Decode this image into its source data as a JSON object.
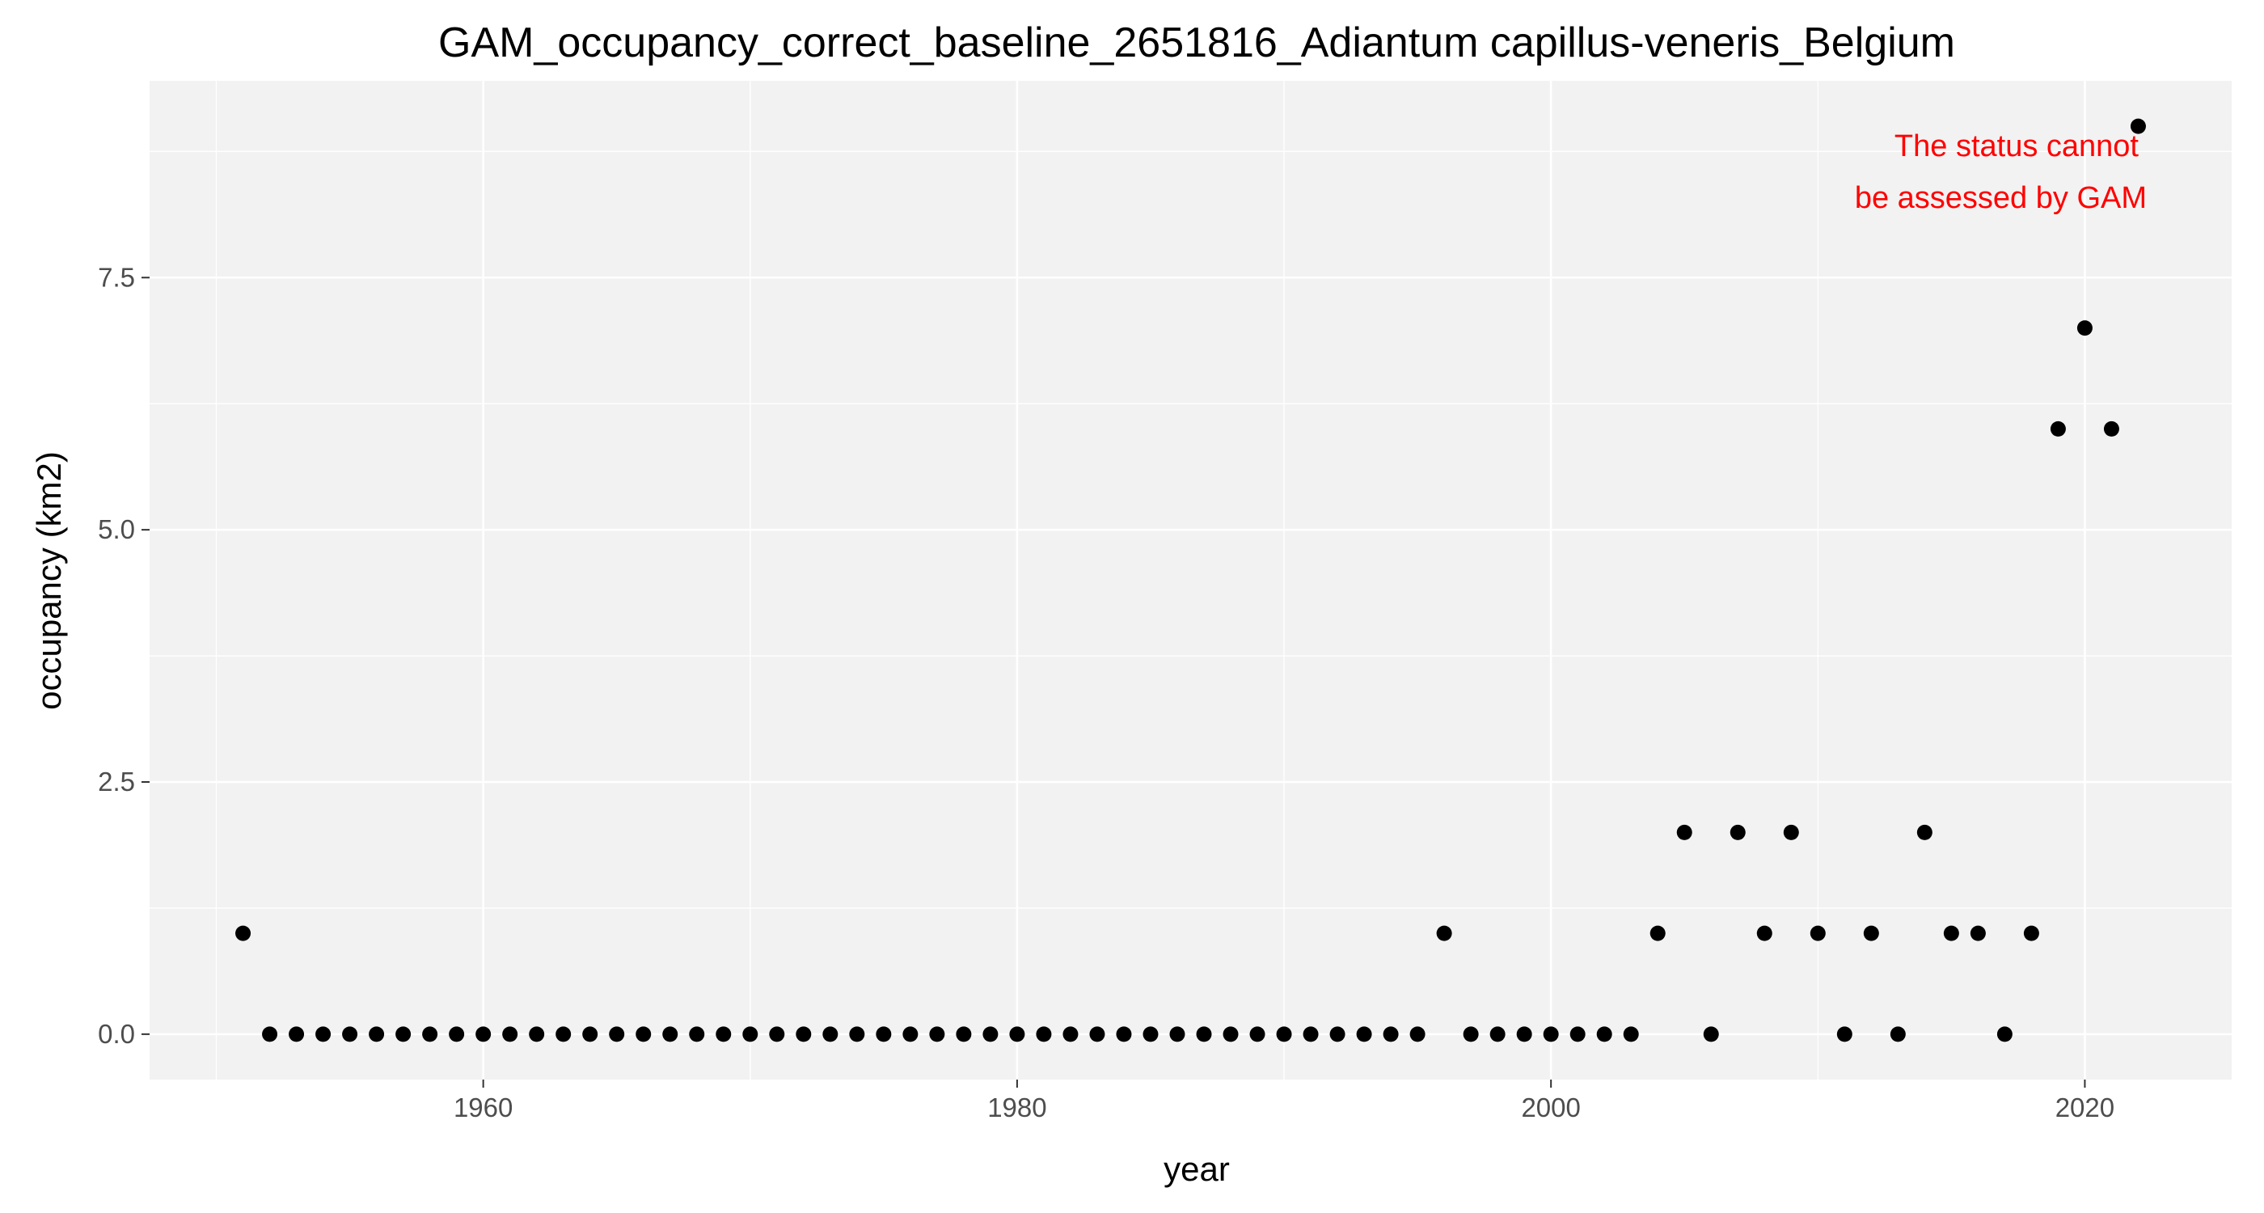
{
  "chart_data": {
    "type": "scatter",
    "title": "GAM_occupancy_correct_baseline_2651816_Adiantum capillus-veneris_Belgium",
    "xlabel": "year",
    "ylabel": "occupancy (km2)",
    "xlim": [
      1947.5,
      2025.5
    ],
    "ylim": [
      -0.45,
      9.45
    ],
    "x_ticks": [
      1960,
      1980,
      2000,
      2020
    ],
    "x_tick_labels": [
      "1960",
      "1980",
      "2000",
      "2020"
    ],
    "y_ticks": [
      0,
      2.5,
      5,
      7.5
    ],
    "y_tick_labels": [
      "0.0",
      "2.5",
      "5.0",
      "7.5"
    ],
    "grid": true,
    "annotation": [
      "The status cannot",
      "be assessed by GAM"
    ],
    "x": [
      1951,
      1952,
      1953,
      1954,
      1955,
      1956,
      1957,
      1958,
      1959,
      1960,
      1961,
      1962,
      1963,
      1964,
      1965,
      1966,
      1967,
      1968,
      1969,
      1970,
      1971,
      1972,
      1973,
      1974,
      1975,
      1976,
      1977,
      1978,
      1979,
      1980,
      1981,
      1982,
      1983,
      1984,
      1985,
      1986,
      1987,
      1988,
      1989,
      1990,
      1991,
      1992,
      1993,
      1994,
      1995,
      1996,
      1997,
      1998,
      1999,
      2000,
      2001,
      2002,
      2003,
      2004,
      2005,
      2006,
      2007,
      2008,
      2009,
      2010,
      2011,
      2012,
      2013,
      2014,
      2015,
      2016,
      2017,
      2018,
      2019,
      2020,
      2021,
      2022
    ],
    "y": [
      1,
      0,
      0,
      0,
      0,
      0,
      0,
      0,
      0,
      0,
      0,
      0,
      0,
      0,
      0,
      0,
      0,
      0,
      0,
      0,
      0,
      0,
      0,
      0,
      0,
      0,
      0,
      0,
      0,
      0,
      0,
      0,
      0,
      0,
      0,
      0,
      0,
      0,
      0,
      0,
      0,
      0,
      0,
      0,
      0,
      1,
      0,
      0,
      0,
      0,
      0,
      0,
      0,
      1,
      2,
      0,
      2,
      1,
      2,
      1,
      0,
      1,
      0,
      2,
      1,
      1,
      0,
      1,
      6,
      7,
      6,
      9
    ]
  },
  "colors": {
    "panel_background": "#f2f2f2",
    "grid_major": "#ffffff",
    "points": "#000000",
    "annotation": "#ff0000"
  }
}
